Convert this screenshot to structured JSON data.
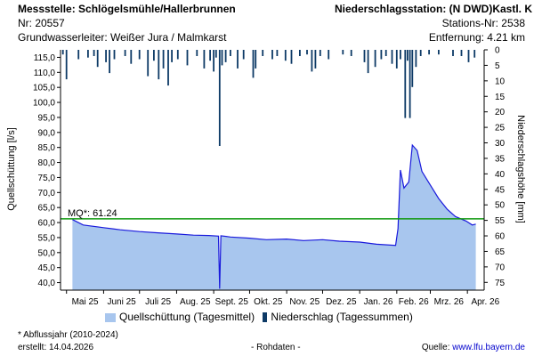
{
  "header": {
    "station_left": "Messstelle: Schlögelsmühle/Hallerbrunnen",
    "nr_left": "Nr: 20557",
    "aquifer": "Grundwasserleiter:   Weißer Jura / Malmkarst",
    "station_right": "Niederschlagsstation: (N DWD)Kastl. K",
    "nr_right": "Stations-Nr: 2538",
    "distance": "Entfernung: 4.21 km"
  },
  "footer": {
    "footnote": "* Abflussjahr (2010-2024)",
    "created": "erstellt:  14.04.2026",
    "raw": "- Rohdaten -",
    "source_label": "Quelle: ",
    "source_link": "www.lfu.bayern.de"
  },
  "legend": {
    "discharge": "Quellschüttung (Tagesmittel)",
    "precip": "Niederschlag (Tagessummen)"
  },
  "colors": {
    "area_fill": "#a8c6ee",
    "area_line": "#1a1adc",
    "mq_line": "#119911",
    "precip_bar": "#0d3a66"
  },
  "chart_data": {
    "type": "area",
    "ylabel_left": "Quellschüttung [l/s]",
    "ylabel_right": "Niederschlagshöhe [mm]",
    "ylim_left": [
      37.5,
      117.5
    ],
    "yticks_left": [
      40.0,
      45.0,
      50.0,
      55.0,
      60.0,
      65.0,
      70.0,
      75.0,
      80.0,
      85.0,
      90.0,
      95.0,
      100.0,
      105.0,
      110.0,
      115.0
    ],
    "yticks_left_labels": [
      "40,0",
      "45,0",
      "50,0",
      "55,0",
      "60,0",
      "65,0",
      "70,0",
      "75,0",
      "80,0",
      "85,0",
      "90,0",
      "95,0",
      "100,0",
      "105,0",
      "110,0",
      "115,0"
    ],
    "ylim_right": [
      0,
      77.5
    ],
    "yticks_right": [
      0,
      5,
      10,
      15,
      20,
      25,
      30,
      35,
      40,
      45,
      50,
      55,
      60,
      65,
      70,
      75
    ],
    "x_ticks": [
      "Mai 25",
      "Juni 25",
      "Juli 25",
      "Aug. 25",
      "Sept. 25",
      "Okt. 25",
      "Nov. 25",
      "Dez. 25",
      "Jan. 26",
      "Feb. 26",
      "Mrz. 26",
      "Apr. 26"
    ],
    "x_range": [
      "2025-04-26",
      "2026-04-15"
    ],
    "mq": {
      "label": "MQ*: 61.24",
      "value": 61.24
    },
    "discharge_series": {
      "name": "Quellschüttung (Tagesmittel)",
      "points": [
        [
          "2025-05-06",
          61.0
        ],
        [
          "2025-05-15",
          59.2
        ],
        [
          "2025-06-01",
          58.3
        ],
        [
          "2025-06-15",
          57.6
        ],
        [
          "2025-07-01",
          57.0
        ],
        [
          "2025-07-15",
          56.6
        ],
        [
          "2025-08-01",
          56.2
        ],
        [
          "2025-08-15",
          55.8
        ],
        [
          "2025-08-28",
          55.7
        ],
        [
          "2025-09-05",
          55.5
        ],
        [
          "2025-09-06",
          38.0
        ],
        [
          "2025-09-07",
          55.6
        ],
        [
          "2025-09-15",
          55.2
        ],
        [
          "2025-10-01",
          54.8
        ],
        [
          "2025-10-15",
          54.3
        ],
        [
          "2025-11-01",
          54.5
        ],
        [
          "2025-11-15",
          54.0
        ],
        [
          "2025-12-01",
          54.3
        ],
        [
          "2025-12-15",
          53.8
        ],
        [
          "2026-01-01",
          53.5
        ],
        [
          "2026-01-15",
          52.8
        ],
        [
          "2026-01-31",
          52.4
        ],
        [
          "2026-02-02",
          58.0
        ],
        [
          "2026-02-04",
          77.5
        ],
        [
          "2026-02-07",
          71.5
        ],
        [
          "2026-02-11",
          73.5
        ],
        [
          "2026-02-14",
          85.8
        ],
        [
          "2026-02-18",
          84.0
        ],
        [
          "2026-02-22",
          77.0
        ],
        [
          "2026-03-01",
          72.5
        ],
        [
          "2026-03-08",
          68.0
        ],
        [
          "2026-03-15",
          64.5
        ],
        [
          "2026-03-22",
          62.0
        ],
        [
          "2026-03-31",
          60.5
        ],
        [
          "2026-04-05",
          59.2
        ],
        [
          "2026-04-08",
          59.5
        ]
      ]
    },
    "precip_series": {
      "name": "Niederschlag (Tagessummen)",
      "points": [
        [
          "2025-04-28",
          1.5
        ],
        [
          "2025-05-01",
          9.5
        ],
        [
          "2025-05-11",
          3.0
        ],
        [
          "2025-05-19",
          2.5
        ],
        [
          "2025-05-24",
          2.0
        ],
        [
          "2025-05-27",
          5.5
        ],
        [
          "2025-06-03",
          4.0
        ],
        [
          "2025-06-06",
          7.5
        ],
        [
          "2025-06-10",
          3.0
        ],
        [
          "2025-06-19",
          2.0
        ],
        [
          "2025-06-24",
          4.5
        ],
        [
          "2025-07-01",
          3.0
        ],
        [
          "2025-07-08",
          8.5
        ],
        [
          "2025-07-13",
          3.5
        ],
        [
          "2025-07-17",
          9.5
        ],
        [
          "2025-07-21",
          6.0
        ],
        [
          "2025-07-25",
          11.5
        ],
        [
          "2025-07-28",
          4.0
        ],
        [
          "2025-08-02",
          3.0
        ],
        [
          "2025-08-10",
          5.0
        ],
        [
          "2025-08-18",
          2.0
        ],
        [
          "2025-08-24",
          6.0
        ],
        [
          "2025-08-29",
          3.5
        ],
        [
          "2025-09-01",
          7.0
        ],
        [
          "2025-09-03",
          2.5
        ],
        [
          "2025-09-06",
          31.0
        ],
        [
          "2025-09-08",
          5.0
        ],
        [
          "2025-09-11",
          4.0
        ],
        [
          "2025-09-15",
          2.0
        ],
        [
          "2025-09-21",
          6.0
        ],
        [
          "2025-09-26",
          3.0
        ],
        [
          "2025-10-04",
          9.0
        ],
        [
          "2025-10-06",
          6.0
        ],
        [
          "2025-10-12",
          2.0
        ],
        [
          "2025-10-20",
          3.0
        ],
        [
          "2025-10-24",
          2.0
        ],
        [
          "2025-10-31",
          3.5
        ],
        [
          "2025-11-05",
          4.5
        ],
        [
          "2025-11-12",
          2.0
        ],
        [
          "2025-11-18",
          1.5
        ],
        [
          "2025-11-22",
          7.0
        ],
        [
          "2025-11-25",
          6.0
        ],
        [
          "2025-11-29",
          2.0
        ],
        [
          "2025-12-06",
          3.0
        ],
        [
          "2025-12-18",
          1.5
        ],
        [
          "2025-12-25",
          2.0
        ],
        [
          "2026-01-05",
          4.0
        ],
        [
          "2026-01-08",
          7.5
        ],
        [
          "2026-01-14",
          5.5
        ],
        [
          "2026-01-19",
          3.0
        ],
        [
          "2026-01-23",
          2.0
        ],
        [
          "2026-01-28",
          4.5
        ],
        [
          "2026-02-01",
          6.0
        ],
        [
          "2026-02-04",
          3.0
        ],
        [
          "2026-02-08",
          22.0
        ],
        [
          "2026-02-10",
          3.5
        ],
        [
          "2026-02-12",
          22.0
        ],
        [
          "2026-02-14",
          12.0
        ],
        [
          "2026-02-17",
          5.5
        ],
        [
          "2026-02-21",
          2.0
        ],
        [
          "2026-02-28",
          1.5
        ],
        [
          "2026-03-08",
          1.5
        ],
        [
          "2026-03-20",
          2.0
        ],
        [
          "2026-03-27",
          2.0
        ],
        [
          "2026-04-02",
          4.0
        ],
        [
          "2026-04-07",
          2.5
        ]
      ]
    }
  }
}
